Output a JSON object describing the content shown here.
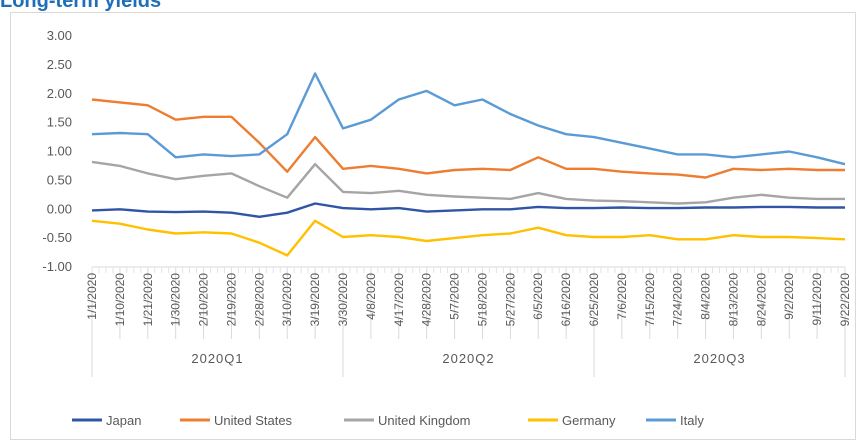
{
  "chart_data": {
    "type": "line",
    "title": "Long-term yields",
    "ylim": [
      -1.0,
      3.0
    ],
    "y_ticks": [
      "3.00",
      "2.50",
      "2.00",
      "1.50",
      "1.00",
      "0.50",
      "0.00",
      "-0.50",
      "-1.00"
    ],
    "x_tick_labels": [
      "1/1/2020",
      "1/10/2020",
      "1/21/2020",
      "1/30/2020",
      "2/10/2020",
      "2/19/2020",
      "2/28/2020",
      "3/10/2020",
      "3/19/2020",
      "3/30/2020",
      "4/8/2020",
      "4/17/2020",
      "4/28/2020",
      "5/7/2020",
      "5/18/2020",
      "5/27/2020",
      "6/5/2020",
      "6/16/2020",
      "6/25/2020",
      "7/6/2020",
      "7/15/2020",
      "7/24/2020",
      "8/4/2020",
      "8/13/2020",
      "8/24/2020",
      "9/2/2020",
      "9/11/2020",
      "9/22/2020"
    ],
    "groups": [
      {
        "label": "2020Q1",
        "from": 0,
        "to": 9
      },
      {
        "label": "2020Q2",
        "from": 9,
        "to": 18
      },
      {
        "label": "2020Q3",
        "from": 18,
        "to": 27
      }
    ],
    "legend_position": "bottom",
    "series": [
      {
        "name": "Japan",
        "color": "#2f55a4",
        "values": [
          -0.02,
          0.0,
          -0.04,
          -0.05,
          -0.04,
          -0.06,
          -0.13,
          -0.06,
          0.1,
          0.02,
          0.0,
          0.02,
          -0.04,
          -0.02,
          0.0,
          0.0,
          0.04,
          0.02,
          0.02,
          0.03,
          0.02,
          0.02,
          0.03,
          0.03,
          0.04,
          0.04,
          0.03,
          0.03
        ]
      },
      {
        "name": "United States",
        "color": "#ed7d31",
        "values": [
          1.9,
          1.85,
          1.8,
          1.55,
          1.6,
          1.6,
          1.15,
          0.65,
          1.25,
          0.7,
          0.75,
          0.7,
          0.62,
          0.68,
          0.7,
          0.68,
          0.9,
          0.7,
          0.7,
          0.65,
          0.62,
          0.6,
          0.55,
          0.7,
          0.68,
          0.7,
          0.68,
          0.68
        ]
      },
      {
        "name": "United Kingdom",
        "color": "#a5a5a5",
        "values": [
          0.82,
          0.75,
          0.62,
          0.52,
          0.58,
          0.62,
          0.4,
          0.2,
          0.78,
          0.3,
          0.28,
          0.32,
          0.25,
          0.22,
          0.2,
          0.18,
          0.28,
          0.18,
          0.15,
          0.14,
          0.12,
          0.1,
          0.12,
          0.2,
          0.25,
          0.2,
          0.18,
          0.18
        ]
      },
      {
        "name": "Germany",
        "color": "#ffc000",
        "values": [
          -0.2,
          -0.25,
          -0.35,
          -0.42,
          -0.4,
          -0.42,
          -0.58,
          -0.8,
          -0.2,
          -0.48,
          -0.45,
          -0.48,
          -0.55,
          -0.5,
          -0.45,
          -0.42,
          -0.32,
          -0.45,
          -0.48,
          -0.48,
          -0.45,
          -0.52,
          -0.52,
          -0.45,
          -0.48,
          -0.48,
          -0.5,
          -0.52
        ]
      },
      {
        "name": "Italy",
        "color": "#5b9bd5",
        "values": [
          1.3,
          1.32,
          1.3,
          0.9,
          0.95,
          0.92,
          0.95,
          1.3,
          2.35,
          1.4,
          1.55,
          1.9,
          2.05,
          1.8,
          1.9,
          1.65,
          1.45,
          1.3,
          1.25,
          1.15,
          1.05,
          0.95,
          0.95,
          0.9,
          0.95,
          1.0,
          0.9,
          0.78
        ]
      }
    ]
  }
}
